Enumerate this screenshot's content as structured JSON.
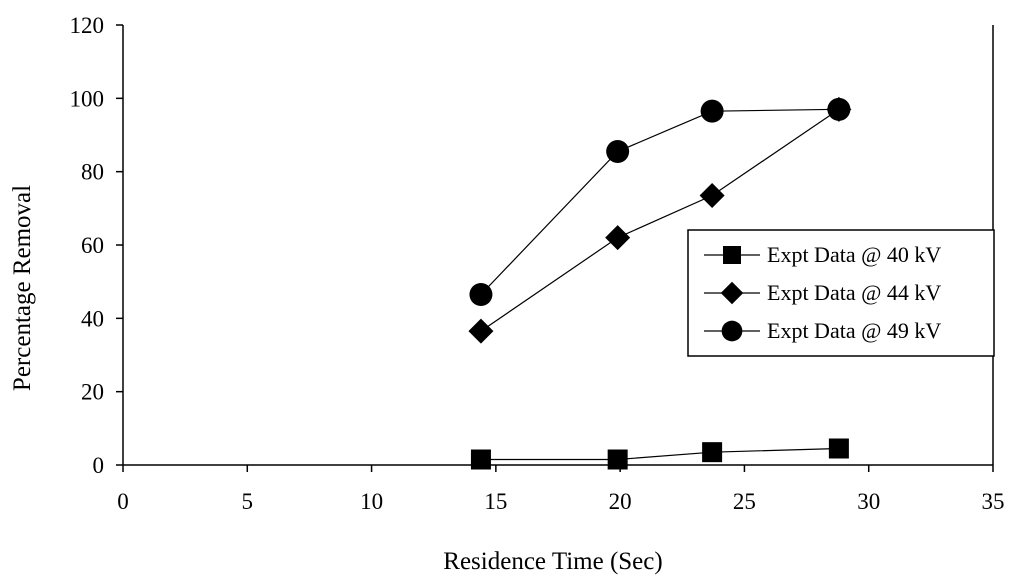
{
  "chart_data": {
    "type": "scatter",
    "title": "",
    "xlabel": "Residence Time (Sec)",
    "ylabel": "Percentage Removal",
    "xlim": [
      0,
      35
    ],
    "ylim": [
      0,
      120
    ],
    "xticks": [
      0,
      5,
      10,
      15,
      20,
      25,
      30,
      35
    ],
    "yticks": [
      0,
      20,
      40,
      60,
      80,
      100,
      120
    ],
    "grid": false,
    "legend_position": "right",
    "series": [
      {
        "name": "Expt Data @ 40 kV",
        "marker": "square",
        "color": "#000000",
        "points": [
          [
            14.4,
            1.5
          ],
          [
            19.9,
            1.5
          ],
          [
            23.7,
            3.5
          ],
          [
            28.8,
            4.5
          ]
        ]
      },
      {
        "name": "Expt Data @ 44 kV",
        "marker": "diamond",
        "color": "#000000",
        "points": [
          [
            14.4,
            36.5
          ],
          [
            19.9,
            62
          ],
          [
            23.7,
            73.5
          ],
          [
            28.8,
            97
          ]
        ]
      },
      {
        "name": "Expt Data @ 49 kV",
        "marker": "circle",
        "color": "#000000",
        "points": [
          [
            14.4,
            46.5
          ],
          [
            19.9,
            85.5
          ],
          [
            23.7,
            96.5
          ],
          [
            28.8,
            97
          ]
        ]
      }
    ]
  }
}
